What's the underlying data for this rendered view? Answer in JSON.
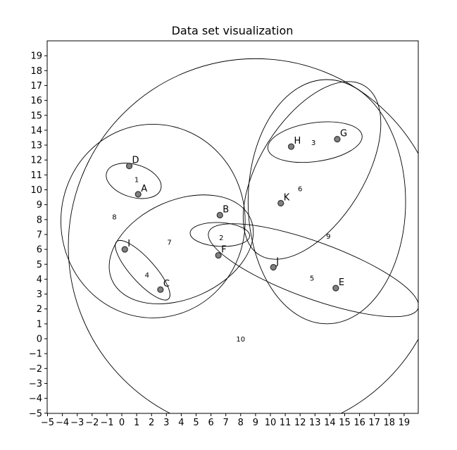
{
  "chart_data": {
    "type": "scatter",
    "title": "Data set visualization",
    "xlabel": "",
    "ylabel": "",
    "xlim": [
      -5,
      20
    ],
    "ylim": [
      -5,
      20
    ],
    "x_ticks": [
      -5,
      -4,
      -3,
      -2,
      -1,
      0,
      1,
      2,
      3,
      4,
      5,
      6,
      7,
      8,
      9,
      10,
      11,
      12,
      13,
      14,
      15,
      16,
      17,
      18,
      19
    ],
    "y_ticks": [
      -5,
      -4,
      -3,
      -2,
      -1,
      0,
      1,
      2,
      3,
      4,
      5,
      6,
      7,
      8,
      9,
      10,
      11,
      12,
      13,
      14,
      15,
      16,
      17,
      18,
      19
    ],
    "grid": false,
    "points": [
      {
        "label": "A",
        "x": 1.1,
        "y": 9.7
      },
      {
        "label": "B",
        "x": 6.6,
        "y": 8.3
      },
      {
        "label": "C",
        "x": 2.6,
        "y": 3.3
      },
      {
        "label": "D",
        "x": 0.5,
        "y": 11.6
      },
      {
        "label": "E",
        "x": 14.4,
        "y": 3.4
      },
      {
        "label": "F",
        "x": 6.5,
        "y": 5.6
      },
      {
        "label": "G",
        "x": 14.5,
        "y": 13.4
      },
      {
        "label": "H",
        "x": 11.4,
        "y": 12.9
      },
      {
        "label": "I",
        "x": 0.2,
        "y": 6.0
      },
      {
        "label": "J",
        "x": 10.2,
        "y": 4.8
      },
      {
        "label": "K",
        "x": 10.7,
        "y": 9.1
      }
    ],
    "clusters": [
      {
        "label": "1",
        "cx": 0.8,
        "cy": 10.6,
        "rx": 1.1,
        "ry": 1.9,
        "angle": 73,
        "label_x": 1.0,
        "label_y": 10.7
      },
      {
        "label": "2",
        "cx": 6.6,
        "cy": 7.0,
        "rx": 0.8,
        "ry": 2.0,
        "angle": 87,
        "label_x": 6.7,
        "label_y": 6.8
      },
      {
        "label": "3",
        "cx": 13.0,
        "cy": 13.2,
        "rx": 3.2,
        "ry": 1.3,
        "angle": 8,
        "label_x": 12.9,
        "label_y": 13.2
      },
      {
        "label": "4",
        "cx": 1.4,
        "cy": 4.6,
        "rx": 2.6,
        "ry": 0.8,
        "angle": -48,
        "label_x": 1.7,
        "label_y": 4.3
      },
      {
        "label": "5",
        "cx": 12.9,
        "cy": 4.6,
        "rx": 7.5,
        "ry": 1.9,
        "angle": -20,
        "label_x": 12.8,
        "label_y": 4.1
      },
      {
        "label": "6",
        "cx": 12.8,
        "cy": 11.3,
        "rx": 6.7,
        "ry": 3.5,
        "angle": 58,
        "label_x": 12.0,
        "label_y": 10.1
      },
      {
        "label": "7",
        "cx": 4.0,
        "cy": 6.0,
        "rx": 5.1,
        "ry": 3.3,
        "angle": 24,
        "label_x": 3.2,
        "label_y": 6.5
      },
      {
        "label": "8",
        "cx": 2.1,
        "cy": 7.9,
        "rx": 6.2,
        "ry": 6.5,
        "angle": 0,
        "label_x": -0.5,
        "label_y": 8.2
      },
      {
        "label": "9",
        "cx": 13.8,
        "cy": 9.2,
        "rx": 5.3,
        "ry": 8.2,
        "angle": 0,
        "label_x": 13.9,
        "label_y": 6.9
      },
      {
        "label": "10",
        "cx": 9.0,
        "cy": 6.2,
        "rx": 12.6,
        "ry": 12.6,
        "angle": 0,
        "label_x": 8.0,
        "label_y": 0.0
      }
    ]
  }
}
